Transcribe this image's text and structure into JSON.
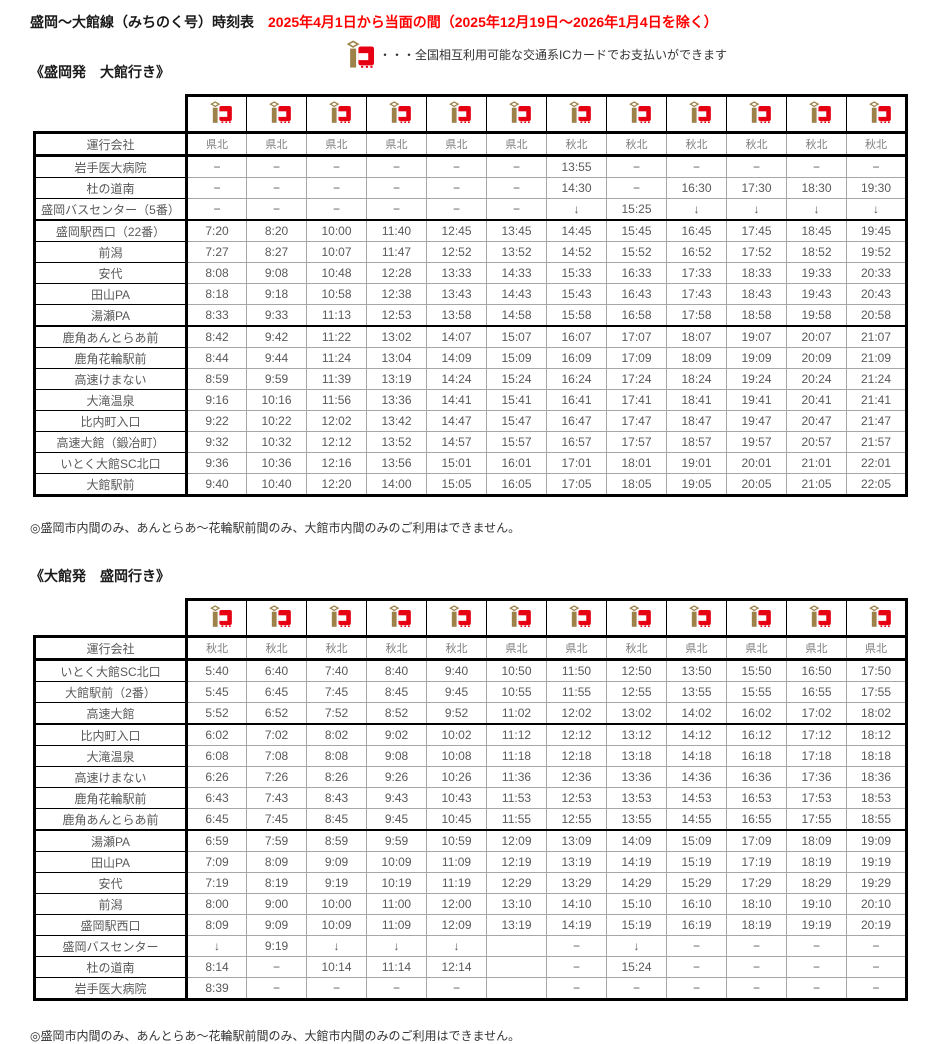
{
  "page": {
    "title": "盛岡〜大館線（みちのく号）時刻表",
    "validity_note": "2025年4月1日から当面の間（2025年12月19日〜2026年1月4日を除く）",
    "ic_legend": "・・・全国相互利用可能な交通系ICカードでお支払いができます",
    "footnote": "◎盛岡市内間のみ、あんとらあ〜花輪駅前間のみ、大館市内間のみのご利用はできません。"
  },
  "colors": {
    "accent_red": "#ff0000",
    "ic_logo_brown": "#9c8248",
    "ic_logo_red": "#e60012",
    "cell_text_gray": "#595959"
  },
  "outbound": {
    "heading": "《盛岡発　大館行き》",
    "operator_label": "運行会社",
    "operators": [
      "県北",
      "県北",
      "県北",
      "県北",
      "県北",
      "県北",
      "秋北",
      "秋北",
      "秋北",
      "秋北",
      "秋北",
      "秋北"
    ],
    "rows": [
      {
        "station": "岩手医大病院",
        "times": [
          "−",
          "−",
          "−",
          "−",
          "−",
          "−",
          "13:55",
          "−",
          "−",
          "−",
          "−",
          "−"
        ]
      },
      {
        "station": "杜の道南",
        "times": [
          "−",
          "−",
          "−",
          "−",
          "−",
          "−",
          "14:30",
          "−",
          "16:30",
          "17:30",
          "18:30",
          "19:30"
        ]
      },
      {
        "station": "盛岡バスセンター（5番）",
        "thick_bottom": true,
        "times": [
          "−",
          "−",
          "−",
          "−",
          "−",
          "−",
          "↓",
          "15:25",
          "↓",
          "↓",
          "↓",
          "↓"
        ]
      },
      {
        "station": "盛岡駅西口（22番）",
        "times": [
          "7:20",
          "8:20",
          "10:00",
          "11:40",
          "12:45",
          "13:45",
          "14:45",
          "15:45",
          "16:45",
          "17:45",
          "18:45",
          "19:45"
        ]
      },
      {
        "station": "前潟",
        "times": [
          "7:27",
          "8:27",
          "10:07",
          "11:47",
          "12:52",
          "13:52",
          "14:52",
          "15:52",
          "16:52",
          "17:52",
          "18:52",
          "19:52"
        ]
      },
      {
        "station": "安代",
        "times": [
          "8:08",
          "9:08",
          "10:48",
          "12:28",
          "13:33",
          "14:33",
          "15:33",
          "16:33",
          "17:33",
          "18:33",
          "19:33",
          "20:33"
        ]
      },
      {
        "station": "田山PA",
        "times": [
          "8:18",
          "9:18",
          "10:58",
          "12:38",
          "13:43",
          "14:43",
          "15:43",
          "16:43",
          "17:43",
          "18:43",
          "19:43",
          "20:43"
        ]
      },
      {
        "station": "湯瀬PA",
        "thick_bottom": true,
        "times": [
          "8:33",
          "9:33",
          "11:13",
          "12:53",
          "13:58",
          "14:58",
          "15:58",
          "16:58",
          "17:58",
          "18:58",
          "19:58",
          "20:58"
        ]
      },
      {
        "station": "鹿角あんとらあ前",
        "times": [
          "8:42",
          "9:42",
          "11:22",
          "13:02",
          "14:07",
          "15:07",
          "16:07",
          "17:07",
          "18:07",
          "19:07",
          "20:07",
          "21:07"
        ]
      },
      {
        "station": "鹿角花輪駅前",
        "times": [
          "8:44",
          "9:44",
          "11:24",
          "13:04",
          "14:09",
          "15:09",
          "16:09",
          "17:09",
          "18:09",
          "19:09",
          "20:09",
          "21:09"
        ]
      },
      {
        "station": "高速けまない",
        "times": [
          "8:59",
          "9:59",
          "11:39",
          "13:19",
          "14:24",
          "15:24",
          "16:24",
          "17:24",
          "18:24",
          "19:24",
          "20:24",
          "21:24"
        ]
      },
      {
        "station": "大滝温泉",
        "times": [
          "9:16",
          "10:16",
          "11:56",
          "13:36",
          "14:41",
          "15:41",
          "16:41",
          "17:41",
          "18:41",
          "19:41",
          "20:41",
          "21:41"
        ]
      },
      {
        "station": "比内町入口",
        "times": [
          "9:22",
          "10:22",
          "12:02",
          "13:42",
          "14:47",
          "15:47",
          "16:47",
          "17:47",
          "18:47",
          "19:47",
          "20:47",
          "21:47"
        ]
      },
      {
        "station": "高速大館（鍛冶町）",
        "times": [
          "9:32",
          "10:32",
          "12:12",
          "13:52",
          "14:57",
          "15:57",
          "16:57",
          "17:57",
          "18:57",
          "19:57",
          "20:57",
          "21:57"
        ]
      },
      {
        "station": "いとく大館SC北口",
        "times": [
          "9:36",
          "10:36",
          "12:16",
          "13:56",
          "15:01",
          "16:01",
          "17:01",
          "18:01",
          "19:01",
          "20:01",
          "21:01",
          "22:01"
        ]
      },
      {
        "station": "大館駅前",
        "times": [
          "9:40",
          "10:40",
          "12:20",
          "14:00",
          "15:05",
          "16:05",
          "17:05",
          "18:05",
          "19:05",
          "20:05",
          "21:05",
          "22:05"
        ]
      }
    ]
  },
  "inbound": {
    "heading": "《大館発　盛岡行き》",
    "operator_label": "運行会社",
    "operators": [
      "秋北",
      "秋北",
      "秋北",
      "秋北",
      "秋北",
      "県北",
      "県北",
      "秋北",
      "県北",
      "県北",
      "県北",
      "県北"
    ],
    "rows": [
      {
        "station": "いとく大館SC北口",
        "times": [
          "5:40",
          "6:40",
          "7:40",
          "8:40",
          "9:40",
          "10:50",
          "11:50",
          "12:50",
          "13:50",
          "15:50",
          "16:50",
          "17:50"
        ]
      },
      {
        "station": "大館駅前（2番）",
        "times": [
          "5:45",
          "6:45",
          "7:45",
          "8:45",
          "9:45",
          "10:55",
          "11:55",
          "12:55",
          "13:55",
          "15:55",
          "16:55",
          "17:55"
        ]
      },
      {
        "station": "高速大館",
        "thick_bottom": true,
        "times": [
          "5:52",
          "6:52",
          "7:52",
          "8:52",
          "9:52",
          "11:02",
          "12:02",
          "13:02",
          "14:02",
          "16:02",
          "17:02",
          "18:02"
        ]
      },
      {
        "station": "比内町入口",
        "times": [
          "6:02",
          "7:02",
          "8:02",
          "9:02",
          "10:02",
          "11:12",
          "12:12",
          "13:12",
          "14:12",
          "16:12",
          "17:12",
          "18:12"
        ]
      },
      {
        "station": "大滝温泉",
        "times": [
          "6:08",
          "7:08",
          "8:08",
          "9:08",
          "10:08",
          "11:18",
          "12:18",
          "13:18",
          "14:18",
          "16:18",
          "17:18",
          "18:18"
        ]
      },
      {
        "station": "高速けまない",
        "times": [
          "6:26",
          "7:26",
          "8:26",
          "9:26",
          "10:26",
          "11:36",
          "12:36",
          "13:36",
          "14:36",
          "16:36",
          "17:36",
          "18:36"
        ]
      },
      {
        "station": "鹿角花輪駅前",
        "times": [
          "6:43",
          "7:43",
          "8:43",
          "9:43",
          "10:43",
          "11:53",
          "12:53",
          "13:53",
          "14:53",
          "16:53",
          "17:53",
          "18:53"
        ]
      },
      {
        "station": "鹿角あんとらあ前",
        "thick_bottom": true,
        "times": [
          "6:45",
          "7:45",
          "8:45",
          "9:45",
          "10:45",
          "11:55",
          "12:55",
          "13:55",
          "14:55",
          "16:55",
          "17:55",
          "18:55"
        ]
      },
      {
        "station": "湯瀬PA",
        "times": [
          "6:59",
          "7:59",
          "8:59",
          "9:59",
          "10:59",
          "12:09",
          "13:09",
          "14:09",
          "15:09",
          "17:09",
          "18:09",
          "19:09"
        ]
      },
      {
        "station": "田山PA",
        "times": [
          "7:09",
          "8:09",
          "9:09",
          "10:09",
          "11:09",
          "12:19",
          "13:19",
          "14:19",
          "15:19",
          "17:19",
          "18:19",
          "19:19"
        ]
      },
      {
        "station": "安代",
        "times": [
          "7:19",
          "8:19",
          "9:19",
          "10:19",
          "11:19",
          "12:29",
          "13:29",
          "14:29",
          "15:29",
          "17:29",
          "18:29",
          "19:29"
        ]
      },
      {
        "station": "前潟",
        "times": [
          "8:00",
          "9:00",
          "10:00",
          "11:00",
          "12:00",
          "13:10",
          "14:10",
          "15:10",
          "16:10",
          "18:10",
          "19:10",
          "20:10"
        ]
      },
      {
        "station": "盛岡駅西口",
        "times": [
          "8:09",
          "9:09",
          "10:09",
          "11:09",
          "12:09",
          "13:19",
          "14:19",
          "15:19",
          "16:19",
          "18:19",
          "19:19",
          "20:19"
        ]
      },
      {
        "station": "盛岡バスセンター",
        "times": [
          "↓",
          "9:19",
          "↓",
          "↓",
          "↓",
          "",
          "−",
          "↓",
          "−",
          "−",
          "−",
          "−"
        ]
      },
      {
        "station": "杜の道南",
        "times": [
          "8:14",
          "−",
          "10:14",
          "11:14",
          "12:14",
          "",
          "−",
          "15:24",
          "−",
          "−",
          "−",
          "−"
        ]
      },
      {
        "station": "岩手医大病院",
        "times": [
          "8:39",
          "−",
          "−",
          "−",
          "−",
          "",
          "−",
          "−",
          "−",
          "−",
          "−",
          "−"
        ]
      }
    ]
  }
}
